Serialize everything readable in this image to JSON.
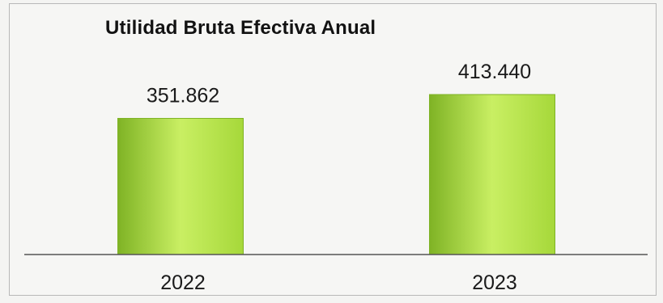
{
  "chart_data": {
    "type": "bar",
    "title": "Utilidad Bruta Efectiva Anual",
    "categories": [
      "2022",
      "2023"
    ],
    "values": [
      351862,
      413440
    ],
    "value_labels": [
      "351.862",
      "413.440"
    ],
    "xlabel": "",
    "ylabel": "",
    "grid": false,
    "legend": "none",
    "colors": {
      "bar_light": "#c9ef63",
      "bar_mid": "#a6d83a",
      "bar_dark": "#7fb325",
      "axis": "#555555",
      "text": "#1a1a1a"
    }
  }
}
